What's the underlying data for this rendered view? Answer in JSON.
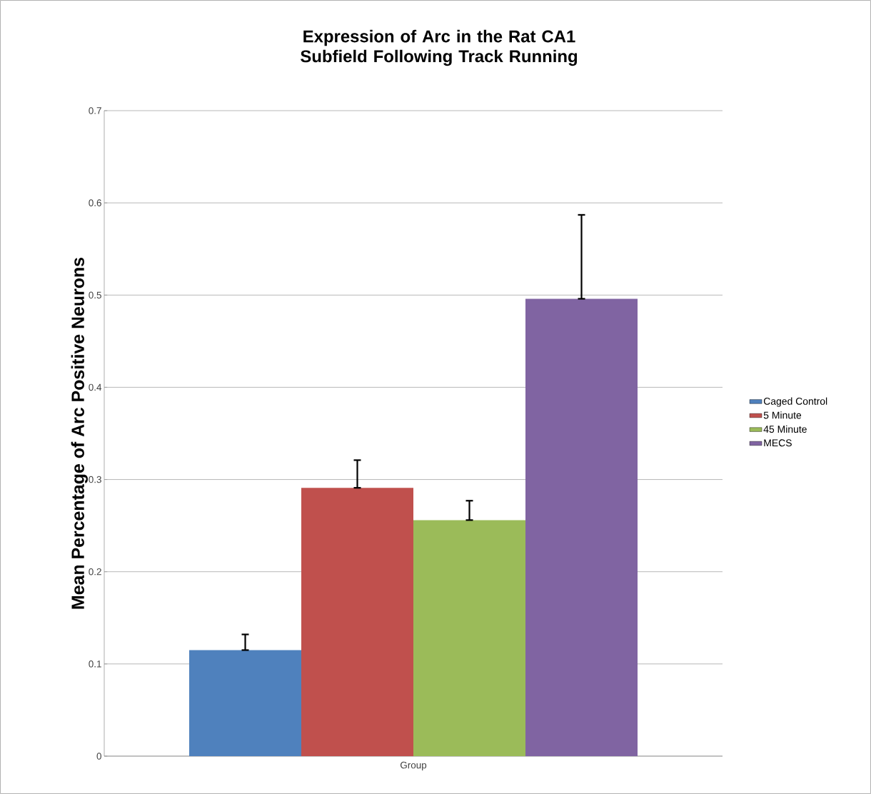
{
  "chart_data": {
    "type": "bar",
    "title": "Expression of Arc in the Rat CA1 Subfield Following Track Running",
    "ylabel": "Mean Percentage of Arc Positive Neurons",
    "categories": [
      "Group"
    ],
    "series": [
      {
        "name": "Caged Control",
        "color": "#4f81bd",
        "values": [
          0.115
        ],
        "errors": [
          [
            0.115,
            0.132
          ]
        ]
      },
      {
        "name": "5 Minute",
        "color": "#c0504d",
        "values": [
          0.291
        ],
        "errors": [
          [
            0.291,
            0.321
          ]
        ]
      },
      {
        "name": "45 Minute",
        "color": "#9bbb59",
        "values": [
          0.256
        ],
        "errors": [
          [
            0.256,
            0.277
          ]
        ]
      },
      {
        "name": "MECS",
        "color": "#8064a2",
        "values": [
          0.496
        ],
        "errors": [
          [
            0.496,
            0.587
          ]
        ]
      }
    ],
    "ylim": [
      0,
      0.7
    ],
    "yticks": [
      0,
      0.1,
      0.2,
      0.3,
      0.4,
      0.5,
      0.6,
      0.7
    ],
    "grid": "y",
    "legend": "right"
  }
}
